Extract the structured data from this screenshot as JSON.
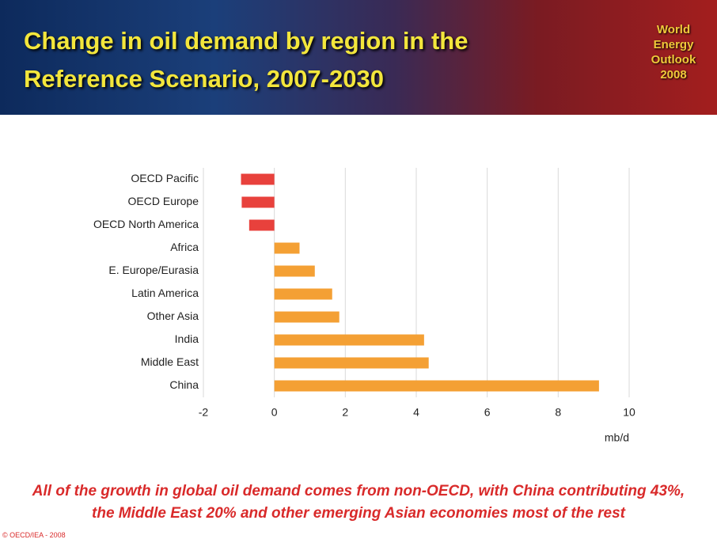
{
  "chart_data": {
    "type": "bar",
    "orientation": "horizontal",
    "title": "Change in oil demand by region in the Reference Scenario, 2007-2030",
    "logo": "World Energy Outlook 2008",
    "categories": [
      "OECD Pacific",
      "OECD Europe",
      "OECD North America",
      "Africa",
      "E. Europe/Eurasia",
      "Latin America",
      "Other Asia",
      "India",
      "Middle East",
      "China"
    ],
    "values": [
      -0.94,
      -0.92,
      -0.71,
      0.71,
      1.14,
      1.63,
      1.83,
      4.22,
      4.35,
      9.15
    ],
    "colors": [
      "#e8413c",
      "#e8413c",
      "#e8413c",
      "#f4a034",
      "#f4a034",
      "#f4a034",
      "#f4a034",
      "#f4a034",
      "#f4a034",
      "#f4a034"
    ],
    "xlim": [
      -2,
      10
    ],
    "xticks": [
      -2,
      0,
      2,
      4,
      6,
      8,
      10
    ],
    "grid": true,
    "x_label": "mb/d",
    "caption": "All of the growth in global oil demand comes from non-OECD, with China contributing 43%, the Middle East 20% and other emerging Asian economies most of the rest",
    "footer": "© OECD/IEA - 2008"
  }
}
